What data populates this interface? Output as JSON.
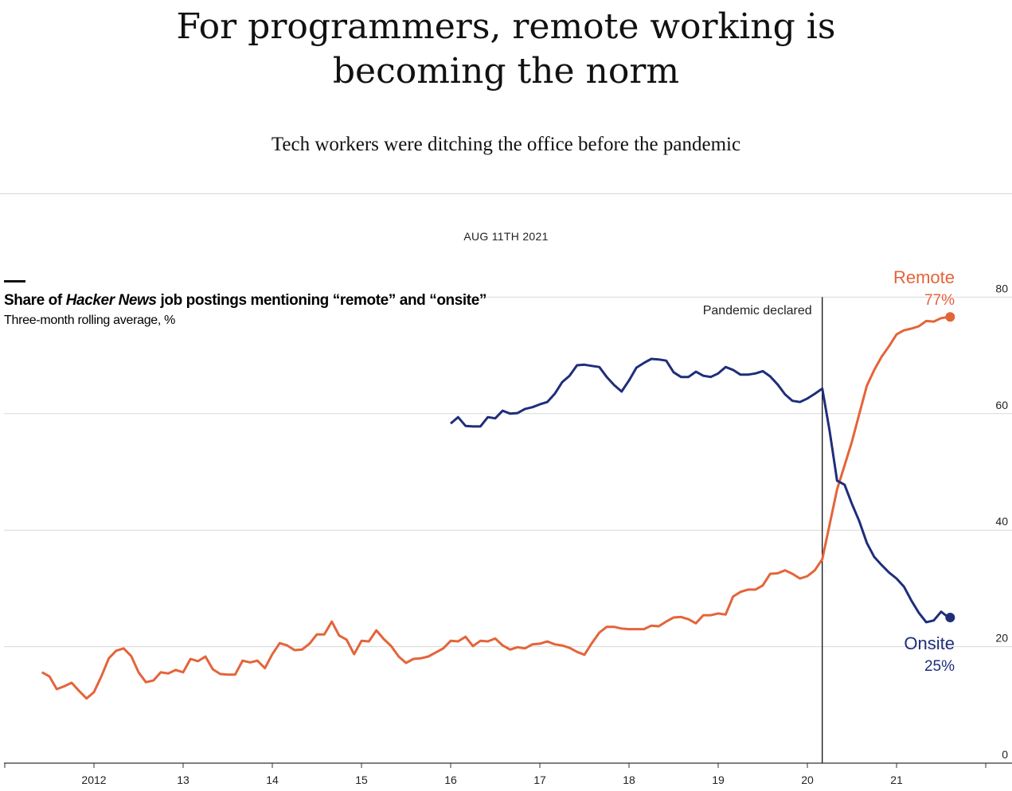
{
  "header": {
    "title_line1": "For programmers, remote working is",
    "title_line2": "becoming the norm",
    "subtitle": "Tech workers were ditching the office before the pandemic",
    "date": "AUG 11TH 2021"
  },
  "chart_data": {
    "type": "line",
    "title_parts": [
      "Share of ",
      "Hacker News",
      " job postings mentioning “remote” and “onsite”"
    ],
    "subtitle": "Three-month rolling average, %",
    "ylim": [
      0,
      80
    ],
    "yticks": [
      0,
      20,
      40,
      60,
      80
    ],
    "y_axis_side": "right",
    "grid": true,
    "xticks": [
      {
        "year": 2012,
        "label": "2012"
      },
      {
        "year": 2013,
        "label": "13"
      },
      {
        "year": 2014,
        "label": "14"
      },
      {
        "year": 2015,
        "label": "15"
      },
      {
        "year": 2016,
        "label": "16"
      },
      {
        "year": 2017,
        "label": "17"
      },
      {
        "year": 2018,
        "label": "18"
      },
      {
        "year": 2019,
        "label": "19"
      },
      {
        "year": 2020,
        "label": "20"
      },
      {
        "year": 2021,
        "label": "21"
      }
    ],
    "annotation": {
      "label": "Pandemic declared",
      "date": "2020-03"
    },
    "x": [
      "2011-06",
      "2011-07",
      "2011-08",
      "2011-09",
      "2011-10",
      "2011-11",
      "2011-12",
      "2012-01",
      "2012-02",
      "2012-03",
      "2012-04",
      "2012-05",
      "2012-06",
      "2012-07",
      "2012-08",
      "2012-09",
      "2012-10",
      "2012-11",
      "2012-12",
      "2013-01",
      "2013-02",
      "2013-03",
      "2013-04",
      "2013-05",
      "2013-06",
      "2013-07",
      "2013-08",
      "2013-09",
      "2013-10",
      "2013-11",
      "2013-12",
      "2014-01",
      "2014-02",
      "2014-03",
      "2014-04",
      "2014-05",
      "2014-06",
      "2014-07",
      "2014-08",
      "2014-09",
      "2014-10",
      "2014-11",
      "2014-12",
      "2015-01",
      "2015-02",
      "2015-03",
      "2015-04",
      "2015-05",
      "2015-06",
      "2015-07",
      "2015-08",
      "2015-09",
      "2015-10",
      "2015-11",
      "2015-12",
      "2016-01",
      "2016-02",
      "2016-03",
      "2016-04",
      "2016-05",
      "2016-06",
      "2016-07",
      "2016-08",
      "2016-09",
      "2016-10",
      "2016-11",
      "2016-12",
      "2017-01",
      "2017-02",
      "2017-03",
      "2017-04",
      "2017-05",
      "2017-06",
      "2017-07",
      "2017-08",
      "2017-09",
      "2017-10",
      "2017-11",
      "2017-12",
      "2018-01",
      "2018-02",
      "2018-03",
      "2018-04",
      "2018-05",
      "2018-06",
      "2018-07",
      "2018-08",
      "2018-09",
      "2018-10",
      "2018-11",
      "2018-12",
      "2019-01",
      "2019-02",
      "2019-03",
      "2019-04",
      "2019-05",
      "2019-06",
      "2019-07",
      "2019-08",
      "2019-09",
      "2019-10",
      "2019-11",
      "2019-12",
      "2020-01",
      "2020-02",
      "2020-03",
      "2020-04",
      "2020-05",
      "2020-06",
      "2020-07",
      "2020-08",
      "2020-09",
      "2020-10",
      "2020-11",
      "2020-12",
      "2021-01",
      "2021-02",
      "2021-03",
      "2021-04",
      "2021-05",
      "2021-06",
      "2021-07",
      "2021-08"
    ],
    "series": [
      {
        "name": "Remote",
        "end_label": "77%",
        "color": "#e4643a",
        "values": [
          15.6,
          14.9,
          12.7,
          13.2,
          13.8,
          12.4,
          11.1,
          12.2,
          14.9,
          18.0,
          19.3,
          19.7,
          18.4,
          15.6,
          13.9,
          14.2,
          15.6,
          15.4,
          16.0,
          15.6,
          17.9,
          17.5,
          18.3,
          16.1,
          15.3,
          15.2,
          15.2,
          17.6,
          17.3,
          17.6,
          16.3,
          18.7,
          20.6,
          20.2,
          19.4,
          19.5,
          20.5,
          22.1,
          22.1,
          24.3,
          21.9,
          21.2,
          18.7,
          21.0,
          20.9,
          22.8,
          21.3,
          20.1,
          18.3,
          17.2,
          17.9,
          18.0,
          18.3,
          19.0,
          19.7,
          21.0,
          20.9,
          21.7,
          20.1,
          21.0,
          20.9,
          21.4,
          20.2,
          19.5,
          19.9,
          19.7,
          20.4,
          20.5,
          20.9,
          20.4,
          20.2,
          19.8,
          19.1,
          18.6,
          20.6,
          22.4,
          23.4,
          23.4,
          23.1,
          23.0,
          23.0,
          23.0,
          23.6,
          23.5,
          24.3,
          25.0,
          25.1,
          24.7,
          24.0,
          25.4,
          25.4,
          25.7,
          25.5,
          28.6,
          29.4,
          29.8,
          29.8,
          30.5,
          32.5,
          32.6,
          33.1,
          32.5,
          31.7,
          32.1,
          33.1,
          35.0,
          41.0,
          47.0,
          51.1,
          55.2,
          60.0,
          64.8,
          67.5,
          69.8,
          71.6,
          73.6,
          74.3,
          74.6,
          75.0,
          75.9,
          75.8,
          76.4,
          76.6
        ]
      },
      {
        "name": "Onsite",
        "end_label": "25%",
        "color": "#1f2e7a",
        "values": [
          null,
          null,
          null,
          null,
          null,
          null,
          null,
          null,
          null,
          null,
          null,
          null,
          null,
          null,
          null,
          null,
          null,
          null,
          null,
          null,
          null,
          null,
          null,
          null,
          null,
          null,
          null,
          null,
          null,
          null,
          null,
          null,
          null,
          null,
          null,
          null,
          null,
          null,
          null,
          null,
          null,
          null,
          null,
          null,
          null,
          null,
          null,
          null,
          null,
          null,
          null,
          null,
          null,
          null,
          null,
          58.3,
          59.4,
          57.9,
          57.8,
          57.8,
          59.4,
          59.2,
          60.5,
          60.0,
          60.1,
          60.8,
          61.1,
          61.6,
          62.0,
          63.4,
          65.4,
          66.5,
          68.3,
          68.4,
          68.2,
          68.0,
          66.3,
          64.9,
          63.8,
          65.7,
          67.9,
          68.7,
          69.4,
          69.3,
          69.1,
          67.1,
          66.3,
          66.3,
          67.2,
          66.5,
          66.3,
          66.9,
          68.0,
          67.5,
          66.7,
          66.7,
          66.9,
          67.3,
          66.4,
          65.0,
          63.3,
          62.2,
          62.0,
          62.6,
          63.4,
          64.3,
          57.0,
          48.5,
          47.8,
          44.5,
          41.5,
          37.8,
          35.4,
          34.0,
          32.7,
          31.7,
          30.3,
          27.9,
          25.8,
          24.2,
          24.5,
          26.0,
          25.0
        ]
      }
    ]
  }
}
